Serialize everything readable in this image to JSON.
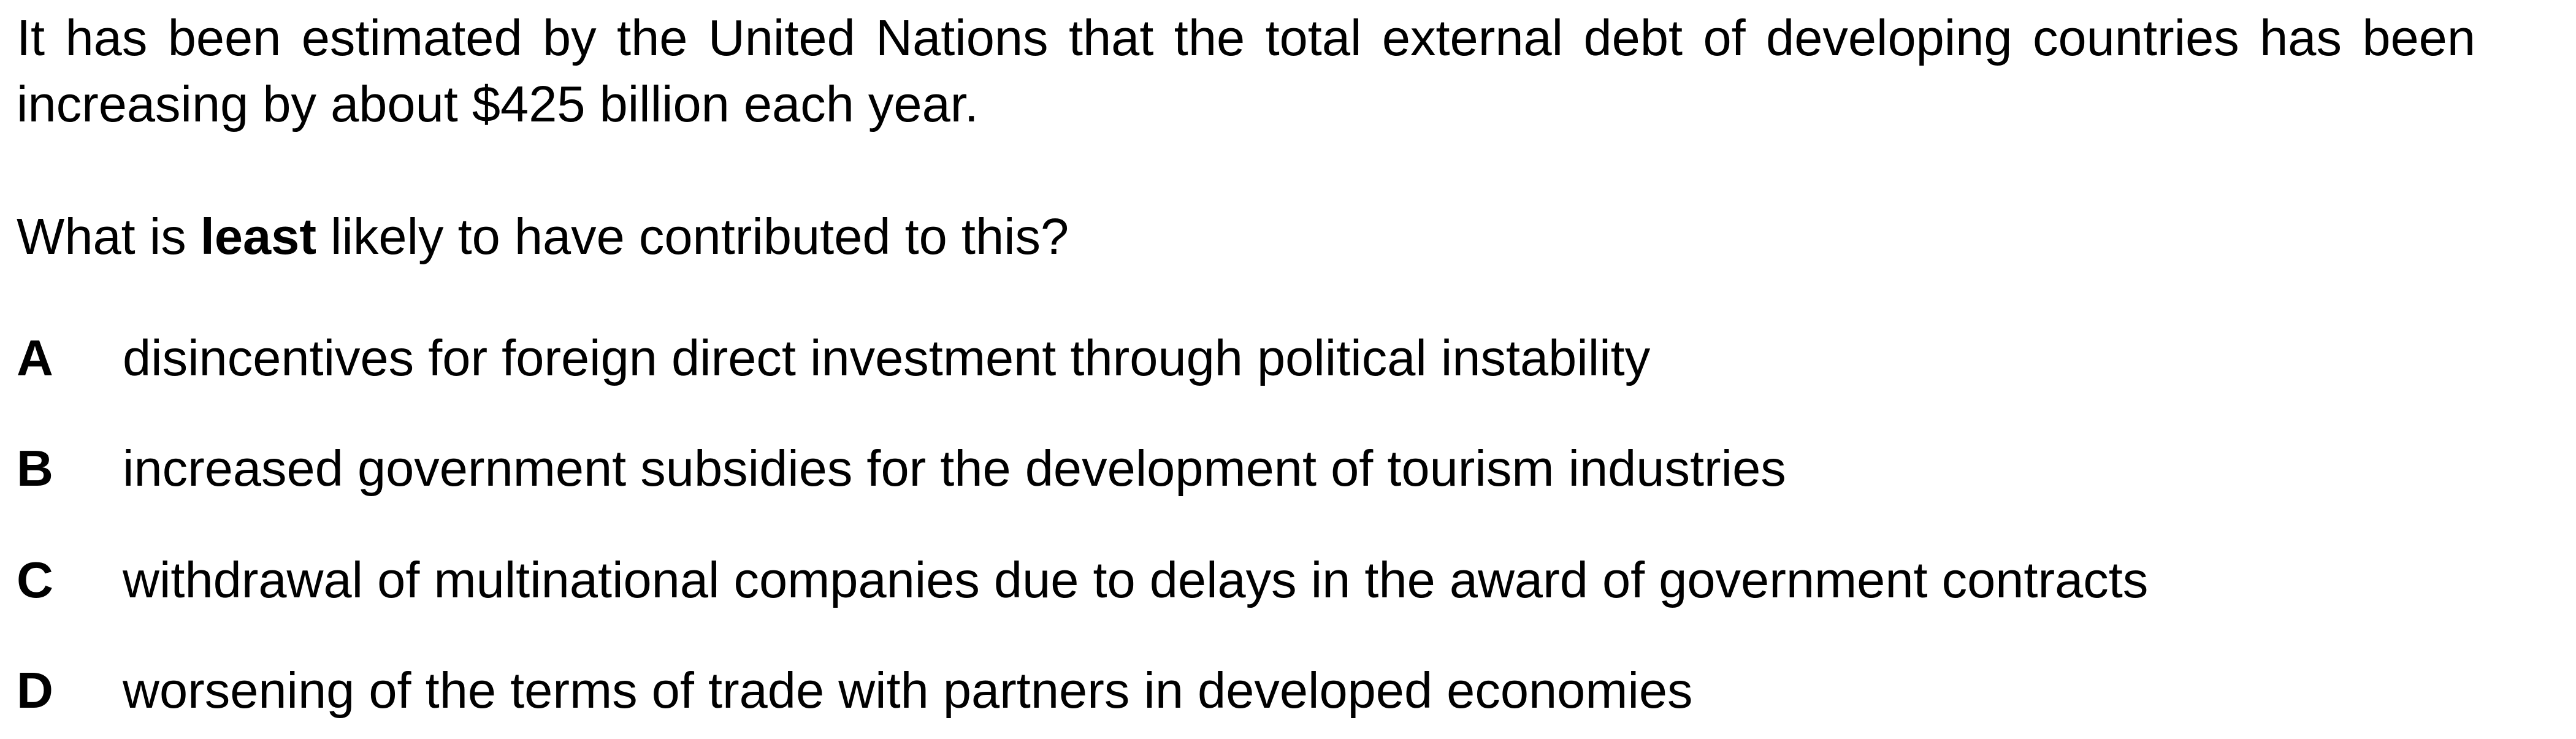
{
  "stem": "It has been estimated by the United Nations that the total external debt of developing countries has been increasing by about $425 billion each year.",
  "question": {
    "before": "What is ",
    "emphasis": "least",
    "after": " likely to have contributed to this?"
  },
  "options": [
    {
      "letter": "A",
      "text": "disincentives for foreign direct investment through political instability"
    },
    {
      "letter": "B",
      "text": "increased government subsidies for the development of tourism industries"
    },
    {
      "letter": "C",
      "text": "withdrawal of multinational companies due to delays in the award of government contracts"
    },
    {
      "letter": "D",
      "text": "worsening of the terms of trade with partners in developed economies"
    }
  ]
}
